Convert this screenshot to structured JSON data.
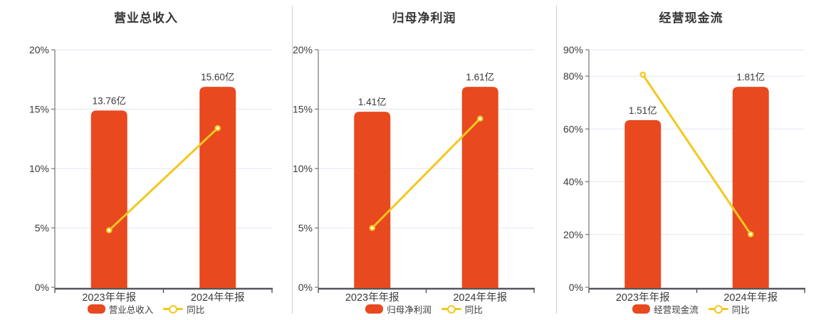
{
  "colors": {
    "bar": "#e8491f",
    "line": "#f5c71d",
    "grid": "#e0e6f1",
    "axis_dark": "#54565c",
    "axis_light": "#73757d",
    "text": "#3b3b3d",
    "title": "#363636",
    "divider": "#cccccc"
  },
  "chart_data": [
    {
      "type": "bar+line",
      "title": "营业总收入",
      "categories": [
        "2023年年报",
        "2024年年报"
      ],
      "y_ticks": [
        0,
        5,
        10,
        15,
        20
      ],
      "y_tick_labels": [
        "0%",
        "5%",
        "10%",
        "15%",
        "20%"
      ],
      "ylim": [
        0,
        20
      ],
      "grid": true,
      "legend_position": "bottom",
      "series": [
        {
          "name": "营业总收入",
          "type": "bar",
          "unit": "亿",
          "values": [
            13.76,
            15.6
          ],
          "labels": [
            "13.76亿",
            "15.60亿"
          ]
        },
        {
          "name": "同比",
          "type": "line",
          "unit": "%",
          "values": [
            4.8,
            13.4
          ]
        }
      ]
    },
    {
      "type": "bar+line",
      "title": "归母净利润",
      "categories": [
        "2023年年报",
        "2024年年报"
      ],
      "y_ticks": [
        0,
        5,
        10,
        15,
        20
      ],
      "y_tick_labels": [
        "0%",
        "5%",
        "10%",
        "15%",
        "20%"
      ],
      "ylim": [
        0,
        20
      ],
      "grid": true,
      "legend_position": "bottom",
      "series": [
        {
          "name": "归母净利润",
          "type": "bar",
          "unit": "亿",
          "values": [
            1.41,
            1.61
          ],
          "labels": [
            "1.41亿",
            "1.61亿"
          ]
        },
        {
          "name": "同比",
          "type": "line",
          "unit": "%",
          "values": [
            5.0,
            14.2
          ]
        }
      ]
    },
    {
      "type": "bar+line",
      "title": "经营现金流",
      "categories": [
        "2023年年报",
        "2024年年报"
      ],
      "y_ticks": [
        0,
        20,
        40,
        60,
        80,
        90
      ],
      "y_tick_labels": [
        "0%",
        "20%",
        "40%",
        "60%",
        "80%",
        "90%"
      ],
      "ylim": [
        0,
        90
      ],
      "grid": true,
      "legend_position": "bottom",
      "series": [
        {
          "name": "经营现金流",
          "type": "bar",
          "unit": "亿",
          "values": [
            1.51,
            1.81
          ],
          "labels": [
            "1.51亿",
            "1.81亿"
          ]
        },
        {
          "name": "同比",
          "type": "%",
          "values": [
            80.6,
            20.1
          ]
        }
      ]
    }
  ]
}
